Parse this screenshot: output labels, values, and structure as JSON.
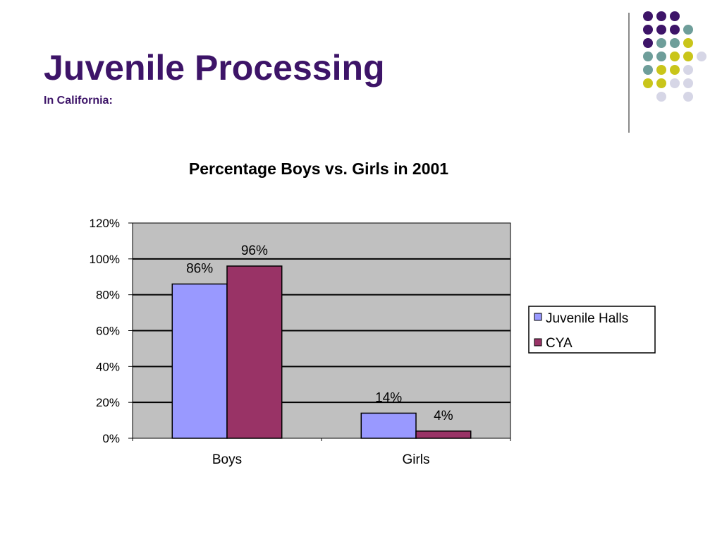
{
  "slide": {
    "title": "Juvenile Processing",
    "subtitle": "In California:"
  },
  "colors": {
    "title": "#3d1468",
    "plot_background": "#c0c0c0",
    "decoration_dots": [
      "#3d1468",
      "#6e9e9a",
      "#c9c51a",
      "#d6d6e6"
    ]
  },
  "chart_data": {
    "type": "bar",
    "title": "Percentage Boys vs. Girls in 2001",
    "categories": [
      "Boys",
      "Girls"
    ],
    "series": [
      {
        "name": "Juvenile Halls",
        "values": [
          86,
          14
        ],
        "labels": [
          "86%",
          "14%"
        ],
        "color": "#9999ff"
      },
      {
        "name": "CYA",
        "values": [
          96,
          4
        ],
        "labels": [
          "96%",
          "4%"
        ],
        "color": "#993366"
      }
    ],
    "y_ticks": [
      "0%",
      "20%",
      "40%",
      "60%",
      "80%",
      "100%",
      "120%"
    ],
    "ylim": [
      0,
      120
    ],
    "grid": true,
    "legend": "right"
  }
}
